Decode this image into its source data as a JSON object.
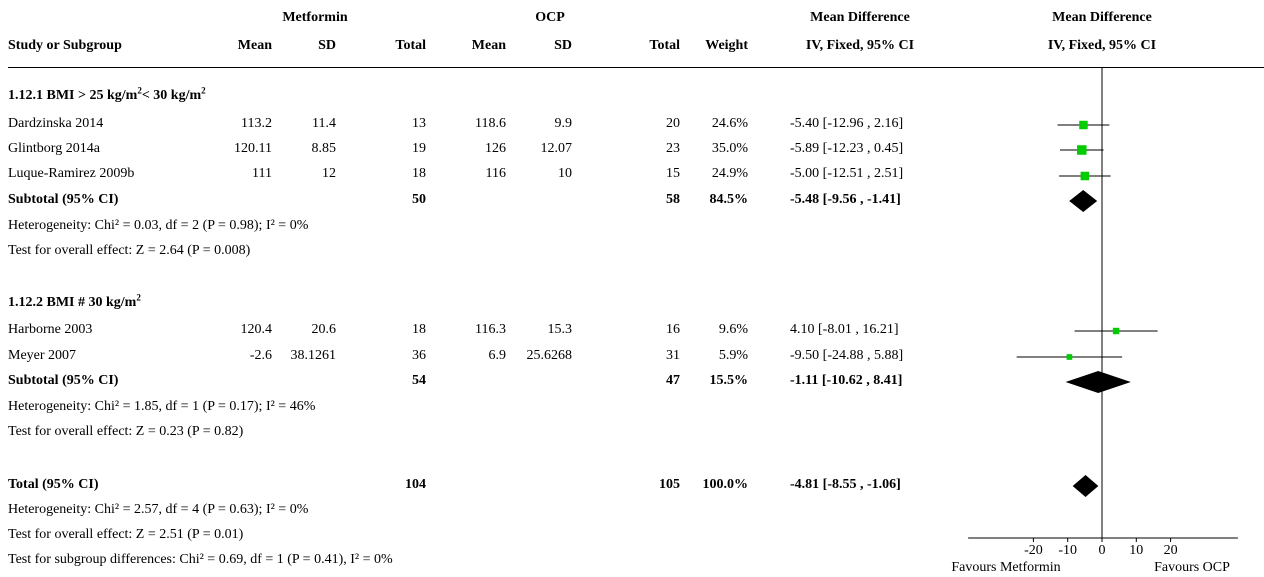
{
  "header": {
    "group_a": "Metformin",
    "group_b": "OCP",
    "md_header": "Mean Difference",
    "md_header2": "Mean Difference",
    "study_col": "Study or Subgroup",
    "mean_a": "Mean",
    "sd_a": "SD",
    "total_a": "Total",
    "mean_b": "Mean",
    "sd_b": "SD",
    "total_b": "Total",
    "weight": "Weight",
    "ci_method": "IV, Fixed, 95% CI",
    "ci_method2": "IV, Fixed, 95% CI"
  },
  "subgroup1": {
    "title_pre": "1.12.1 BMI > 25 kg/m",
    "title_sup1": "2",
    "title_mid": "< 30 kg/m",
    "title_sup2": "2",
    "rows": [
      {
        "study": "Dardzinska 2014",
        "mean_a": "113.2",
        "sd_a": "11.4",
        "total_a": "13",
        "mean_b": "118.6",
        "sd_b": "9.9",
        "total_b": "20",
        "weight": "24.6%",
        "ci": "-5.40 [-12.96 , 2.16]"
      },
      {
        "study": "Glintborg 2014a",
        "mean_a": "120.11",
        "sd_a": "8.85",
        "total_a": "19",
        "mean_b": "126",
        "sd_b": "12.07",
        "total_b": "23",
        "weight": "35.0%",
        "ci": "-5.89 [-12.23 , 0.45]"
      },
      {
        "study": "Luque-Ramirez 2009b",
        "mean_a": "111",
        "sd_a": "12",
        "total_a": "18",
        "mean_b": "116",
        "sd_b": "10",
        "total_b": "15",
        "weight": "24.9%",
        "ci": "-5.00 [-12.51 , 2.51]"
      }
    ],
    "subtotal": {
      "label": "Subtotal (95% CI)",
      "total_a": "50",
      "total_b": "58",
      "weight": "84.5%",
      "ci": "-5.48 [-9.56 , -1.41]"
    },
    "heterogeneity": "Heterogeneity: Chi² = 0.03, df = 2 (P = 0.98); I² = 0%",
    "overall": "Test for overall effect: Z = 2.64 (P = 0.008)"
  },
  "subgroup2": {
    "title_pre": "1.12.2 BMI # 30 kg/m",
    "title_sup1": "2",
    "rows": [
      {
        "study": "Harborne 2003",
        "mean_a": "120.4",
        "sd_a": "20.6",
        "total_a": "18",
        "mean_b": "116.3",
        "sd_b": "15.3",
        "total_b": "16",
        "weight": "9.6%",
        "ci": "4.10 [-8.01 , 16.21]"
      },
      {
        "study": "Meyer 2007",
        "mean_a": "-2.6",
        "sd_a": "38.1261",
        "total_a": "36",
        "mean_b": "6.9",
        "sd_b": "25.6268",
        "total_b": "31",
        "weight": "5.9%",
        "ci": "-9.50 [-24.88 , 5.88]"
      }
    ],
    "subtotal": {
      "label": "Subtotal (95% CI)",
      "total_a": "54",
      "total_b": "47",
      "weight": "15.5%",
      "ci": "-1.11 [-10.62 , 8.41]"
    },
    "heterogeneity": "Heterogeneity: Chi² = 1.85, df = 1 (P = 0.17); I² = 46%",
    "overall": "Test for overall effect: Z = 0.23 (P = 0.82)"
  },
  "total": {
    "label": "Total (95% CI)",
    "total_a": "104",
    "total_b": "105",
    "weight": "100.0%",
    "ci": "-4.81 [-8.55 , -1.06]",
    "heterogeneity": "Heterogeneity: Chi² = 2.57, df = 4 (P = 0.63); I² = 0%",
    "overall": "Test for overall effect: Z = 2.51 (P = 0.01)",
    "subgroup_diff": "Test for subgroup differences: Chi² = 0.69, df = 1 (P = 0.41), I² = 0%"
  },
  "chart_data": {
    "type": "forest",
    "effect_measure": "Mean Difference",
    "method": "IV, Fixed, 95% CI",
    "xlim": [
      -30,
      30
    ],
    "xticks": [
      -20,
      -10,
      0,
      10,
      20
    ],
    "xtick_labels": [
      "-20",
      "-10",
      "0",
      "10",
      "20"
    ],
    "left_label": "Favours Metformin",
    "right_label": "Favours OCP",
    "colors": {
      "study_marker": "#00cc00",
      "diamond": "#000000",
      "lines": "#000000"
    },
    "studies": [
      {
        "study": "Dardzinska 2014",
        "md": -5.4,
        "lo": -12.96,
        "hi": 2.16,
        "weight": 24.6
      },
      {
        "study": "Glintborg 2014a",
        "md": -5.89,
        "lo": -12.23,
        "hi": 0.45,
        "weight": 35.0
      },
      {
        "study": "Luque-Ramirez 2009b",
        "md": -5.0,
        "lo": -12.51,
        "hi": 2.51,
        "weight": 24.9
      },
      {
        "study": "Harborne 2003",
        "md": 4.1,
        "lo": -8.01,
        "hi": 16.21,
        "weight": 9.6
      },
      {
        "study": "Meyer 2007",
        "md": -9.5,
        "lo": -24.88,
        "hi": 5.88,
        "weight": 5.9
      }
    ],
    "pooled": [
      {
        "label": "Subtotal (95% CI)",
        "group": "1.12.1",
        "md": -5.48,
        "lo": -9.56,
        "hi": -1.41
      },
      {
        "label": "Subtotal (95% CI)",
        "group": "1.12.2",
        "md": -1.11,
        "lo": -10.62,
        "hi": 8.41
      },
      {
        "label": "Total (95% CI)",
        "group": "overall",
        "md": -4.81,
        "lo": -8.55,
        "hi": -1.06
      }
    ]
  }
}
